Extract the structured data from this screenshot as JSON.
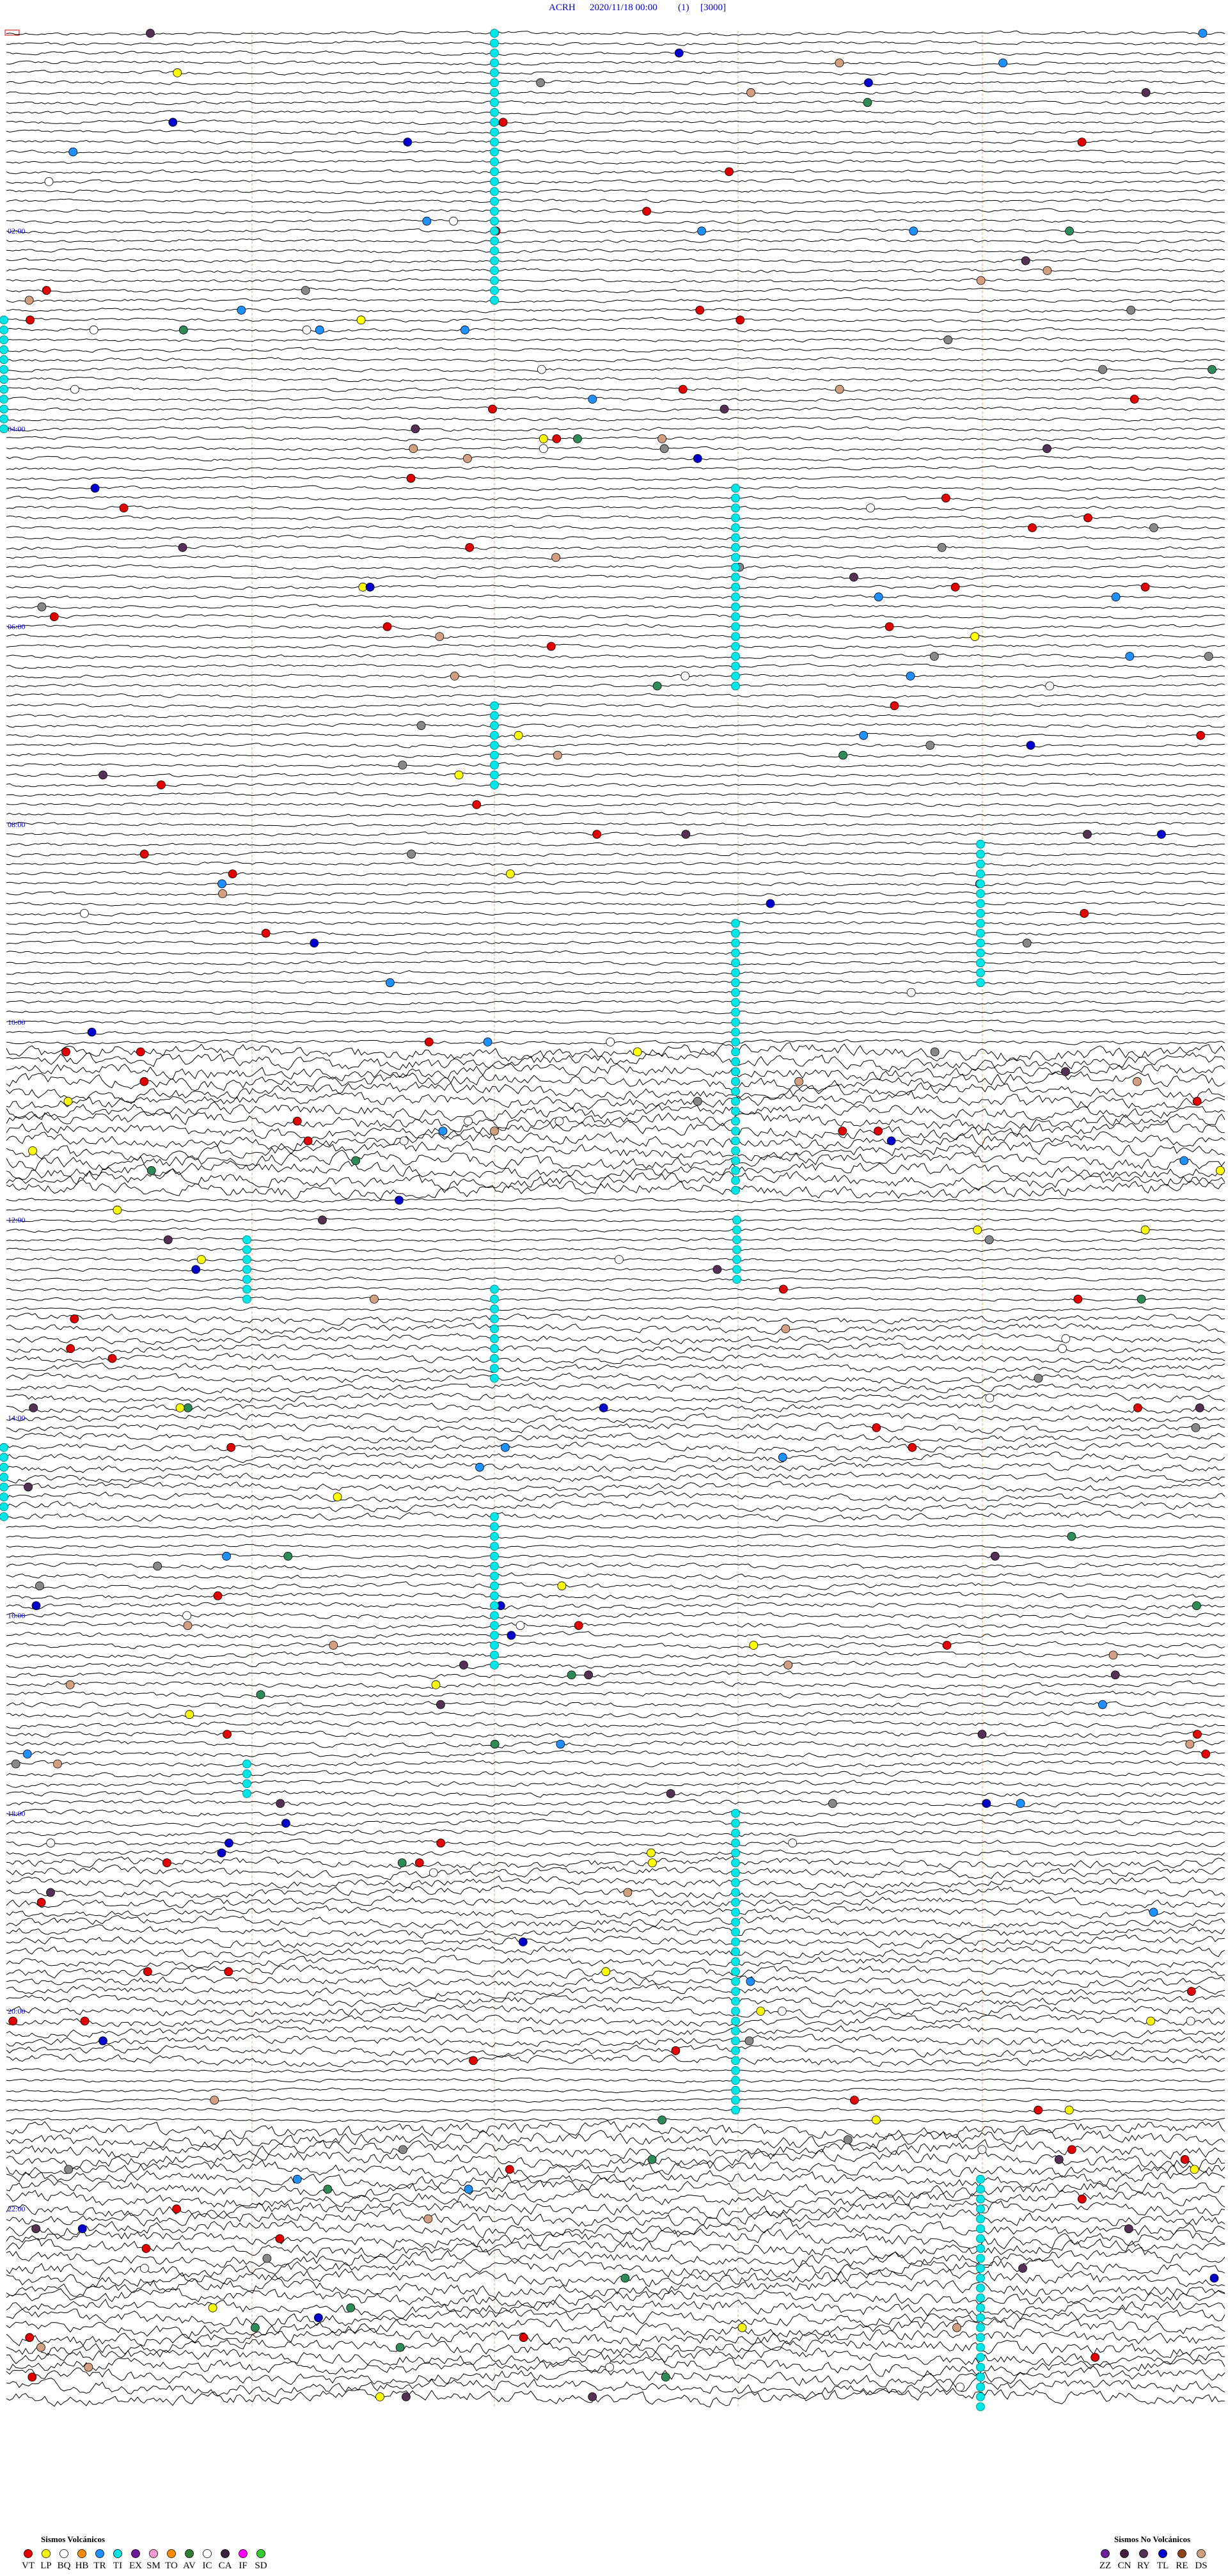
{
  "header": {
    "station": "ACRH",
    "datetime": "2020/11/18 00:00",
    "channel": "(1)",
    "scale": "[3000]"
  },
  "hour_labels": [
    "02:00",
    "04:00",
    "06:00",
    "08:00",
    "10:00",
    "12:00",
    "14:00",
    "16:00",
    "18:00",
    "20:00",
    "22:00"
  ],
  "legend_volcanic": {
    "title": "Sismos Volcánicos",
    "codes": [
      "VT",
      "LP",
      "BQ",
      "HB",
      "TR",
      "TI",
      "EX",
      "SM",
      "TO",
      "AV",
      "IC",
      "CA",
      "IF",
      "SD"
    ]
  },
  "legend_non_volcanic": {
    "title": "Sismos No Volcánicos",
    "codes": [
      "ZZ",
      "CN",
      "RY",
      "TL",
      "RE",
      "DS"
    ]
  }
}
